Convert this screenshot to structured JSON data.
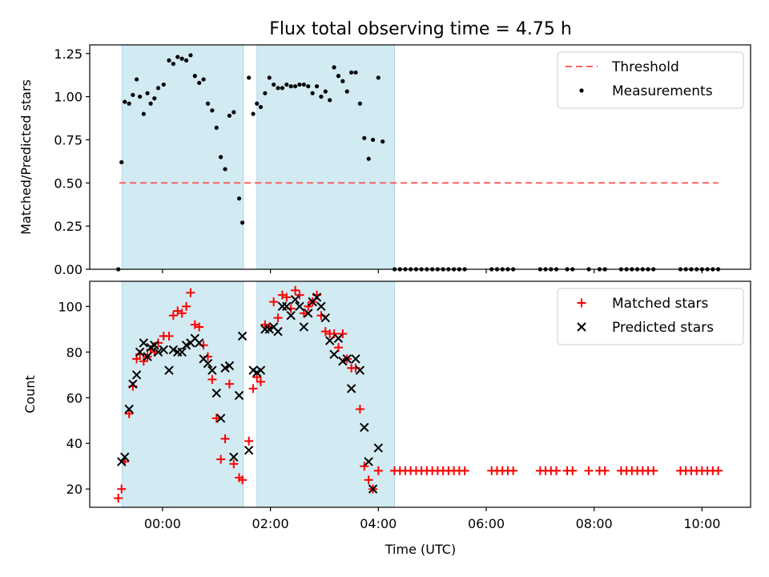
{
  "chart_data": [
    {
      "type": "scatter",
      "title": "Flux total observing time = 4.75 h",
      "xlabel": "",
      "ylabel": "Matched/Predicted stars",
      "xlim": [
        -1.35,
        10.9
      ],
      "ylim": [
        0,
        1.3
      ],
      "yticks": [
        0.0,
        0.25,
        0.5,
        0.75,
        1.0,
        1.25
      ],
      "ytick_labels": [
        "0.00",
        "0.25",
        "0.50",
        "0.75",
        "1.00",
        "1.25"
      ],
      "grid": false,
      "legend": "top-right",
      "shaded_intervals": [
        [
          -0.75,
          1.5
        ],
        [
          1.75,
          4.3
        ]
      ],
      "shade_color": "#add8e6",
      "threshold": {
        "name": "Threshold",
        "y": 0.5,
        "x_range": [
          -0.8,
          10.3
        ],
        "color": "#ff6060"
      },
      "series": [
        {
          "name": "Measurements",
          "color": "#000000",
          "marker": "dot",
          "points": [
            [
              -0.82,
              0.0
            ],
            [
              -0.76,
              0.62
            ],
            [
              -0.7,
              0.97
            ],
            [
              -0.62,
              0.96
            ],
            [
              -0.55,
              1.01
            ],
            [
              -0.48,
              1.1
            ],
            [
              -0.42,
              1.0
            ],
            [
              -0.35,
              0.9
            ],
            [
              -0.28,
              1.02
            ],
            [
              -0.22,
              0.96
            ],
            [
              -0.15,
              0.99
            ],
            [
              -0.08,
              1.05
            ],
            [
              0.02,
              1.07
            ],
            [
              0.12,
              1.21
            ],
            [
              0.2,
              1.19
            ],
            [
              0.28,
              1.23
            ],
            [
              0.36,
              1.22
            ],
            [
              0.44,
              1.21
            ],
            [
              0.52,
              1.24
            ],
            [
              0.6,
              1.12
            ],
            [
              0.68,
              1.08
            ],
            [
              0.76,
              1.1
            ],
            [
              0.84,
              0.96
            ],
            [
              0.92,
              0.92
            ],
            [
              1.0,
              0.82
            ],
            [
              1.08,
              0.65
            ],
            [
              1.16,
              0.58
            ],
            [
              1.24,
              0.89
            ],
            [
              1.32,
              0.91
            ],
            [
              1.42,
              0.41
            ],
            [
              1.48,
              0.27
            ],
            [
              1.6,
              1.11
            ],
            [
              1.68,
              0.9
            ],
            [
              1.75,
              0.96
            ],
            [
              1.82,
              0.94
            ],
            [
              1.9,
              1.02
            ],
            [
              1.98,
              1.11
            ],
            [
              2.06,
              1.07
            ],
            [
              2.14,
              1.05
            ],
            [
              2.22,
              1.05
            ],
            [
              2.3,
              1.07
            ],
            [
              2.38,
              1.06
            ],
            [
              2.46,
              1.06
            ],
            [
              2.54,
              1.07
            ],
            [
              2.62,
              1.07
            ],
            [
              2.7,
              1.06
            ],
            [
              2.78,
              1.02
            ],
            [
              2.86,
              1.06
            ],
            [
              2.94,
              1.0
            ],
            [
              3.02,
              1.03
            ],
            [
              3.1,
              0.98
            ],
            [
              3.18,
              1.17
            ],
            [
              3.26,
              1.12
            ],
            [
              3.34,
              1.09
            ],
            [
              3.42,
              1.03
            ],
            [
              3.5,
              1.14
            ],
            [
              3.58,
              1.14
            ],
            [
              3.66,
              0.96
            ],
            [
              3.74,
              0.76
            ],
            [
              3.82,
              0.64
            ],
            [
              3.9,
              0.75
            ],
            [
              4.0,
              1.11
            ],
            [
              4.08,
              0.74
            ]
          ],
          "zero_x": [
            4.3,
            4.4,
            4.5,
            4.6,
            4.7,
            4.8,
            4.9,
            5.0,
            5.1,
            5.2,
            5.3,
            5.4,
            5.5,
            5.6,
            6.1,
            6.2,
            6.3,
            6.4,
            6.5,
            7.0,
            7.1,
            7.2,
            7.3,
            7.5,
            7.6,
            7.9,
            8.1,
            8.2,
            8.5,
            8.6,
            8.7,
            8.8,
            8.9,
            9.0,
            9.1,
            9.6,
            9.7,
            9.8,
            9.9,
            10.0,
            10.1,
            10.2,
            10.3
          ]
        }
      ]
    },
    {
      "type": "scatter",
      "title": "",
      "xlabel": "Time (UTC)",
      "ylabel": "Count",
      "xlim": [
        -1.35,
        10.9
      ],
      "ylim": [
        12,
        111
      ],
      "yticks": [
        20,
        40,
        60,
        80,
        100
      ],
      "ytick_labels": [
        "20",
        "40",
        "60",
        "80",
        "100"
      ],
      "xticks": [
        0,
        2,
        4,
        6,
        8,
        10
      ],
      "xtick_labels": [
        "00:00",
        "02:00",
        "04:00",
        "06:00",
        "08:00",
        "10:00"
      ],
      "grid": false,
      "legend": "top-right",
      "shaded_intervals": [
        [
          -0.75,
          1.5
        ],
        [
          1.75,
          4.3
        ]
      ],
      "shade_color": "#add8e6",
      "series": [
        {
          "name": "Matched stars",
          "color": "#ff0000",
          "marker": "plus",
          "points": [
            [
              -0.82,
              16
            ],
            [
              -0.76,
              20
            ],
            [
              -0.7,
              32
            ],
            [
              -0.62,
              53
            ],
            [
              -0.55,
              65
            ],
            [
              -0.48,
              77
            ],
            [
              -0.42,
              79
            ],
            [
              -0.35,
              76
            ],
            [
              -0.28,
              78
            ],
            [
              -0.22,
              81
            ],
            [
              -0.15,
              80
            ],
            [
              -0.08,
              84
            ],
            [
              0.02,
              87
            ],
            [
              0.12,
              87
            ],
            [
              0.2,
              96
            ],
            [
              0.28,
              98
            ],
            [
              0.36,
              97
            ],
            [
              0.44,
              100
            ],
            [
              0.52,
              106
            ],
            [
              0.6,
              92
            ],
            [
              0.68,
              91
            ],
            [
              0.76,
              83
            ],
            [
              0.84,
              78
            ],
            [
              0.92,
              68
            ],
            [
              1.0,
              51
            ],
            [
              1.08,
              33
            ],
            [
              1.16,
              42
            ],
            [
              1.24,
              66
            ],
            [
              1.32,
              31
            ],
            [
              1.42,
              25
            ],
            [
              1.48,
              24
            ],
            [
              1.6,
              41
            ],
            [
              1.68,
              64
            ],
            [
              1.75,
              69
            ],
            [
              1.82,
              67
            ],
            [
              1.9,
              92
            ],
            [
              1.98,
              91
            ],
            [
              2.06,
              102
            ],
            [
              2.14,
              95
            ],
            [
              2.22,
              105
            ],
            [
              2.3,
              104
            ],
            [
              2.38,
              99
            ],
            [
              2.46,
              107
            ],
            [
              2.54,
              105
            ],
            [
              2.62,
              97
            ],
            [
              2.7,
              100
            ],
            [
              2.78,
              102
            ],
            [
              2.86,
              105
            ],
            [
              2.94,
              96
            ],
            [
              3.02,
              89
            ],
            [
              3.1,
              88
            ],
            [
              3.18,
              88
            ],
            [
              3.26,
              82
            ],
            [
              3.34,
              88
            ],
            [
              3.42,
              77
            ],
            [
              3.5,
              73
            ],
            [
              3.58,
              73
            ],
            [
              3.66,
              55
            ],
            [
              3.74,
              30
            ],
            [
              3.82,
              24
            ],
            [
              3.9,
              20
            ],
            [
              4.0,
              28
            ]
          ],
          "flat_value": 28,
          "flat_x": [
            4.3,
            4.4,
            4.5,
            4.6,
            4.7,
            4.8,
            4.9,
            5.0,
            5.1,
            5.2,
            5.3,
            5.4,
            5.5,
            5.6,
            6.1,
            6.2,
            6.3,
            6.4,
            6.5,
            7.0,
            7.1,
            7.2,
            7.3,
            7.5,
            7.6,
            7.9,
            8.1,
            8.2,
            8.5,
            8.6,
            8.7,
            8.8,
            8.9,
            9.0,
            9.1,
            9.6,
            9.7,
            9.8,
            9.9,
            10.0,
            10.1,
            10.2,
            10.3
          ]
        },
        {
          "name": "Predicted stars",
          "color": "#000000",
          "marker": "x",
          "points": [
            [
              -0.76,
              32
            ],
            [
              -0.7,
              34
            ],
            [
              -0.62,
              55
            ],
            [
              -0.55,
              66
            ],
            [
              -0.48,
              70
            ],
            [
              -0.42,
              80
            ],
            [
              -0.35,
              84
            ],
            [
              -0.28,
              78
            ],
            [
              -0.22,
              82
            ],
            [
              -0.15,
              83
            ],
            [
              -0.08,
              80
            ],
            [
              0.02,
              81
            ],
            [
              0.12,
              72
            ],
            [
              0.2,
              81
            ],
            [
              0.28,
              80
            ],
            [
              0.36,
              80
            ],
            [
              0.44,
              83
            ],
            [
              0.52,
              84
            ],
            [
              0.6,
              86
            ],
            [
              0.68,
              84
            ],
            [
              0.76,
              77
            ],
            [
              0.84,
              75
            ],
            [
              0.92,
              72
            ],
            [
              1.0,
              62
            ],
            [
              1.08,
              51
            ],
            [
              1.16,
              73
            ],
            [
              1.24,
              74
            ],
            [
              1.32,
              34
            ],
            [
              1.42,
              61
            ],
            [
              1.48,
              87
            ],
            [
              1.6,
              37
            ],
            [
              1.68,
              72
            ],
            [
              1.75,
              71
            ],
            [
              1.82,
              72
            ],
            [
              1.9,
              90
            ],
            [
              1.98,
              90
            ],
            [
              2.06,
              91
            ],
            [
              2.14,
              89
            ],
            [
              2.22,
              100
            ],
            [
              2.3,
              100
            ],
            [
              2.38,
              96
            ],
            [
              2.46,
              103
            ],
            [
              2.54,
              100
            ],
            [
              2.62,
              91
            ],
            [
              2.7,
              97
            ],
            [
              2.78,
              102
            ],
            [
              2.86,
              104
            ],
            [
              2.94,
              100
            ],
            [
              3.02,
              95
            ],
            [
              3.1,
              85
            ],
            [
              3.18,
              79
            ],
            [
              3.26,
              86
            ],
            [
              3.34,
              76
            ],
            [
              3.42,
              77
            ],
            [
              3.5,
              64
            ],
            [
              3.58,
              77
            ],
            [
              3.66,
              72
            ],
            [
              3.74,
              47
            ],
            [
              3.82,
              32
            ],
            [
              3.9,
              20
            ],
            [
              4.0,
              38
            ]
          ]
        }
      ]
    }
  ]
}
